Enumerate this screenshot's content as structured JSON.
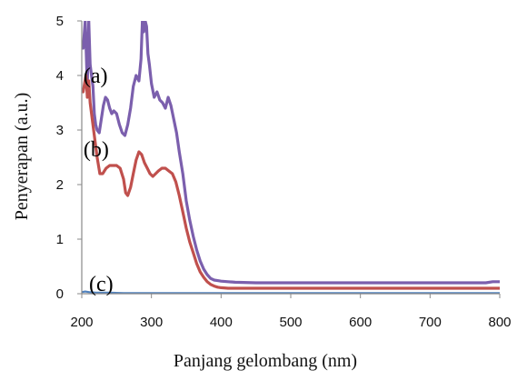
{
  "chart_data": {
    "type": "line",
    "xlabel": "Panjang gelombang (nm)",
    "ylabel": "Penyerapan (a.u.)",
    "xlim": [
      200,
      800
    ],
    "ylim": [
      0,
      5
    ],
    "xticks": [
      "200",
      "300",
      "400",
      "500",
      "600",
      "700",
      "800"
    ],
    "yticks": [
      "0",
      "1",
      "2",
      "3",
      "4",
      "5"
    ],
    "grid": false,
    "legend": "none",
    "annotations": [
      {
        "text": "(a)",
        "x": 222,
        "y": 4.0
      },
      {
        "text": "(b)",
        "x": 222,
        "y": 2.65
      },
      {
        "text": "(c)",
        "x": 230,
        "y": 0.18
      }
    ],
    "series": [
      {
        "color": "#7b5fad",
        "x": [
          202,
          205,
          208,
          210,
          212,
          214,
          216,
          218,
          220,
          222,
          225,
          228,
          231,
          234,
          237,
          240,
          243,
          246,
          250,
          254,
          258,
          262,
          266,
          270,
          274,
          278,
          282,
          285,
          287,
          289,
          291,
          293,
          295,
          297,
          300,
          304,
          308,
          312,
          316,
          320,
          324,
          328,
          332,
          336,
          340,
          345,
          350,
          355,
          360,
          365,
          370,
          375,
          380,
          385,
          390,
          395,
          400,
          410,
          420,
          450,
          500,
          550,
          600,
          650,
          700,
          750,
          780,
          790,
          800
        ],
        "y": [
          4.5,
          5.0,
          3.8,
          5.0,
          4.2,
          4.0,
          3.8,
          3.3,
          3.1,
          3.0,
          2.95,
          3.2,
          3.45,
          3.6,
          3.55,
          3.4,
          3.3,
          3.35,
          3.3,
          3.1,
          2.95,
          2.9,
          3.1,
          3.4,
          3.8,
          4.0,
          3.9,
          4.3,
          5.0,
          4.8,
          5.0,
          4.9,
          4.4,
          4.2,
          3.85,
          3.6,
          3.7,
          3.55,
          3.5,
          3.4,
          3.6,
          3.45,
          3.2,
          2.95,
          2.6,
          2.2,
          1.7,
          1.35,
          1.05,
          0.8,
          0.6,
          0.45,
          0.35,
          0.28,
          0.25,
          0.24,
          0.23,
          0.22,
          0.21,
          0.2,
          0.2,
          0.2,
          0.2,
          0.2,
          0.2,
          0.2,
          0.2,
          0.22,
          0.22
        ]
      },
      {
        "color": "#c0504d",
        "x": [
          202,
          206,
          208,
          210,
          212,
          215,
          218,
          222,
          226,
          230,
          235,
          240,
          245,
          250,
          255,
          260,
          263,
          266,
          270,
          274,
          278,
          282,
          286,
          290,
          294,
          298,
          302,
          306,
          310,
          315,
          320,
          325,
          330,
          335,
          340,
          345,
          350,
          355,
          360,
          365,
          370,
          375,
          380,
          385,
          390,
          395,
          400,
          410,
          420,
          450,
          500,
          550,
          600,
          650,
          700,
          750,
          780,
          800
        ],
        "y": [
          3.7,
          4.0,
          3.6,
          3.9,
          3.5,
          3.2,
          2.9,
          2.5,
          2.2,
          2.2,
          2.3,
          2.35,
          2.35,
          2.35,
          2.3,
          2.1,
          1.85,
          1.8,
          1.95,
          2.2,
          2.45,
          2.6,
          2.55,
          2.4,
          2.3,
          2.2,
          2.15,
          2.2,
          2.25,
          2.3,
          2.3,
          2.25,
          2.2,
          2.05,
          1.8,
          1.5,
          1.2,
          0.95,
          0.75,
          0.55,
          0.4,
          0.3,
          0.22,
          0.17,
          0.14,
          0.12,
          0.11,
          0.1,
          0.1,
          0.1,
          0.1,
          0.1,
          0.1,
          0.1,
          0.1,
          0.1,
          0.1,
          0.1
        ]
      },
      {
        "color": "#4f81bd",
        "x": [
          200,
          205,
          210,
          220,
          240,
          260,
          300,
          400,
          500,
          600,
          700,
          800
        ],
        "y": [
          0.03,
          0.04,
          0.03,
          0.02,
          0.02,
          0.01,
          0.01,
          0.01,
          0.01,
          0.01,
          0.01,
          0.01
        ]
      }
    ]
  }
}
